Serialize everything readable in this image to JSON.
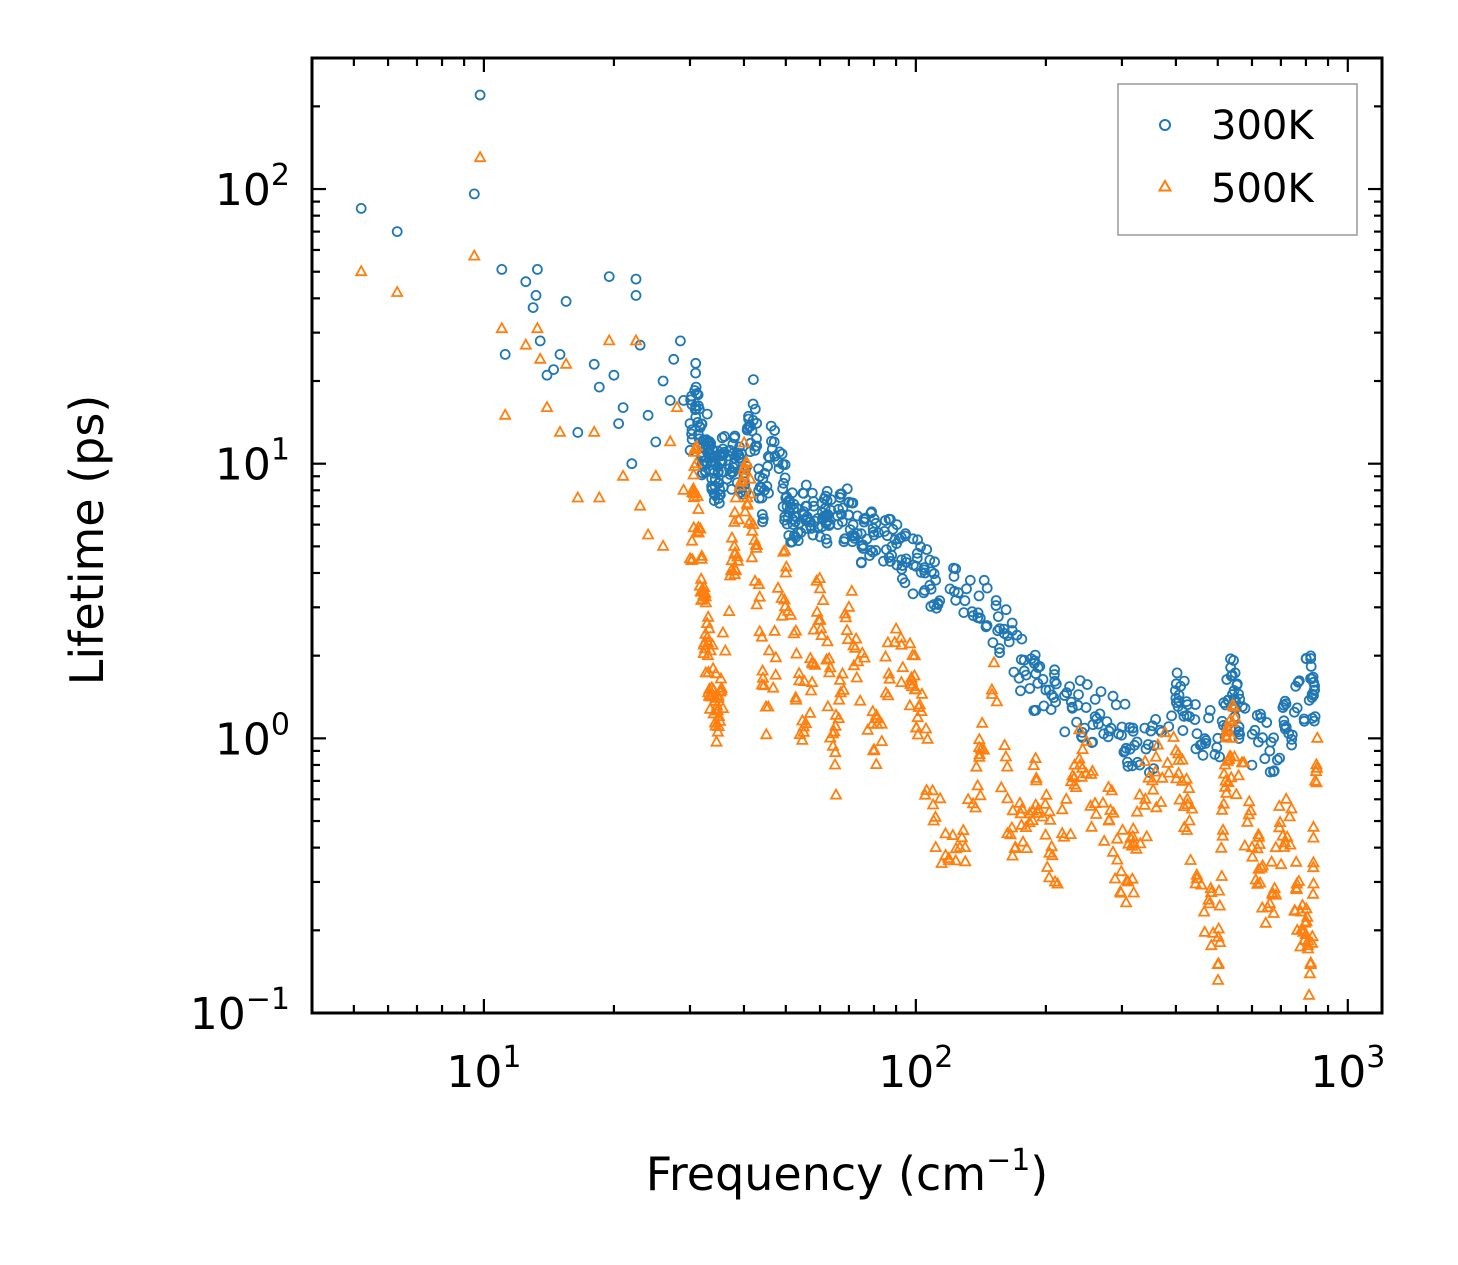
{
  "chart_data": {
    "type": "scatter",
    "xscale": "log",
    "yscale": "log",
    "xlim": [
      4,
      1200
    ],
    "ylim": [
      0.1,
      300
    ],
    "xlabel": "Frequency (cm",
    "xlabel_sup": "−1",
    "xlabel_end": ")",
    "ylabel": "Lifetime (ps)",
    "x_ticks": [
      {
        "value": 10,
        "base": "10",
        "exp": "1"
      },
      {
        "value": 100,
        "base": "10",
        "exp": "2"
      },
      {
        "value": 1000,
        "base": "10",
        "exp": "3"
      }
    ],
    "y_ticks": [
      {
        "value": 0.1,
        "base": "10",
        "exp": "−1"
      },
      {
        "value": 1,
        "base": "10",
        "exp": "0"
      },
      {
        "value": 10,
        "base": "10",
        "exp": "1"
      },
      {
        "value": 100,
        "base": "10",
        "exp": "2"
      }
    ],
    "legend_position": "upper-right",
    "series": [
      {
        "name": "300K",
        "marker": "circle",
        "color": "#1f77b4",
        "points": [
          [
            5.2,
            85
          ],
          [
            6.3,
            70
          ],
          [
            9.5,
            96
          ],
          [
            9.8,
            220
          ],
          [
            11.0,
            51
          ],
          [
            11.2,
            25
          ],
          [
            12.5,
            46
          ],
          [
            13.3,
            51
          ],
          [
            13.2,
            41
          ],
          [
            13.0,
            37
          ],
          [
            13.5,
            28
          ],
          [
            14.0,
            21
          ],
          [
            14.5,
            22
          ],
          [
            15.0,
            25
          ],
          [
            15.5,
            39
          ],
          [
            16.5,
            13
          ],
          [
            18.0,
            23
          ],
          [
            18.5,
            19
          ],
          [
            19.5,
            48
          ],
          [
            20.0,
            21
          ],
          [
            20.5,
            14
          ],
          [
            21.0,
            16
          ],
          [
            22.0,
            10
          ],
          [
            22.5,
            47
          ],
          [
            22.5,
            41
          ],
          [
            23.0,
            27
          ],
          [
            24.0,
            15
          ],
          [
            25.0,
            12
          ],
          [
            26.0,
            20
          ],
          [
            27.0,
            17
          ],
          [
            27.5,
            24
          ],
          [
            28.5,
            28
          ],
          [
            29.0,
            17
          ],
          [
            30.0,
            14
          ],
          [
            31.0,
            19
          ],
          [
            32.0,
            11
          ],
          [
            33.0,
            12
          ],
          [
            34.0,
            9.5
          ],
          [
            35.0,
            8.5
          ],
          [
            36.0,
            11
          ],
          [
            38.0,
            10
          ],
          [
            40.0,
            9
          ],
          [
            42.0,
            16.5
          ],
          [
            44.0,
            7.5
          ],
          [
            47.0,
            12
          ],
          [
            50.0,
            7.5
          ],
          [
            52.0,
            6
          ],
          [
            55.0,
            6.5
          ],
          [
            58.0,
            7
          ],
          [
            62.0,
            6.5
          ],
          [
            66.0,
            6
          ],
          [
            70.0,
            6.5
          ],
          [
            75.0,
            5
          ],
          [
            80.0,
            5.5
          ],
          [
            88.0,
            5
          ],
          [
            95.0,
            4.5
          ],
          [
            105.0,
            4
          ],
          [
            120.0,
            3.5
          ],
          [
            140.0,
            3.3
          ],
          [
            160.0,
            2.5
          ],
          [
            180.0,
            1.7
          ],
          [
            200.0,
            1.5
          ],
          [
            230.0,
            1.3
          ],
          [
            260.0,
            1.2
          ],
          [
            300.0,
            1.1
          ],
          [
            330.0,
            0.8
          ],
          [
            400.0,
            1.4
          ],
          [
            430.0,
            1.2
          ],
          [
            500.0,
            1.0
          ],
          [
            540.0,
            1.7
          ],
          [
            560.0,
            1.1
          ],
          [
            660.0,
            0.9
          ],
          [
            720.0,
            1.1
          ],
          [
            820.0,
            1.65
          ],
          [
            840.0,
            1.2
          ]
        ]
      },
      {
        "name": "500K",
        "marker": "triangle",
        "color": "#ff7f0e",
        "points": [
          [
            5.2,
            50
          ],
          [
            6.3,
            42
          ],
          [
            9.5,
            57
          ],
          [
            9.8,
            130
          ],
          [
            11.0,
            31
          ],
          [
            11.2,
            15
          ],
          [
            12.5,
            27
          ],
          [
            13.3,
            31
          ],
          [
            13.5,
            24
          ],
          [
            14.0,
            16
          ],
          [
            15.0,
            13
          ],
          [
            15.5,
            23
          ],
          [
            16.5,
            7.5
          ],
          [
            18.0,
            13
          ],
          [
            18.5,
            7.5
          ],
          [
            19.5,
            28
          ],
          [
            21.0,
            9
          ],
          [
            22.5,
            28
          ],
          [
            23.0,
            7
          ],
          [
            24.0,
            5.5
          ],
          [
            25.0,
            9
          ],
          [
            26.0,
            5
          ],
          [
            27.0,
            12
          ],
          [
            28.0,
            16
          ],
          [
            29.0,
            8
          ],
          [
            30.0,
            4.5
          ],
          [
            31.0,
            10
          ],
          [
            32.0,
            3.2
          ],
          [
            33.0,
            2
          ],
          [
            34.0,
            1.5
          ],
          [
            35.0,
            1.2
          ],
          [
            38.0,
            5
          ],
          [
            40.0,
            9
          ],
          [
            42.0,
            6
          ],
          [
            45.0,
            1.3
          ],
          [
            50.0,
            4
          ],
          [
            55.0,
            1.1
          ],
          [
            60.0,
            3.5
          ],
          [
            65.0,
            0.8
          ],
          [
            70.0,
            3
          ],
          [
            80.0,
            0.9
          ],
          [
            90.0,
            2.5
          ],
          [
            100.0,
            1.5
          ],
          [
            110.0,
            0.5
          ],
          [
            130.0,
            0.4
          ],
          [
            150.0,
            1.5
          ],
          [
            170.0,
            0.4
          ],
          [
            190.0,
            0.7
          ],
          [
            210.0,
            0.3
          ],
          [
            240.0,
            0.8
          ],
          [
            280.0,
            0.5
          ],
          [
            310.0,
            0.3
          ],
          [
            340.0,
            0.6
          ],
          [
            400.0,
            0.9
          ],
          [
            430.0,
            0.5
          ],
          [
            500.0,
            0.15
          ],
          [
            520.0,
            0.8
          ],
          [
            540.0,
            1.0
          ],
          [
            600.0,
            0.4
          ],
          [
            660.0,
            0.25
          ],
          [
            720.0,
            0.6
          ],
          [
            780.0,
            0.2
          ],
          [
            820.0,
            0.15
          ],
          [
            850.0,
            1.0
          ]
        ]
      }
    ]
  }
}
